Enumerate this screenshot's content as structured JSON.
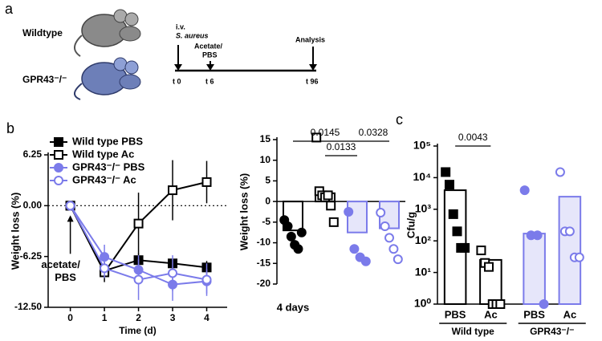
{
  "diagram": {
    "panel": "a",
    "rows": [
      {
        "label": "Wildtype"
      },
      {
        "label": "GPR43⁻/⁻"
      }
    ],
    "events": [
      {
        "label": [
          "i.v.",
          "S. aureus"
        ],
        "time": "t 0"
      },
      {
        "label": [
          "Acetate/",
          "PBS"
        ],
        "time": "t 6"
      },
      {
        "label": [
          "Analysis"
        ],
        "time": "t 96"
      }
    ]
  },
  "chart_data": [
    {
      "type": "line",
      "panel": "b",
      "xlabel": "Time (d)",
      "ylabel": "Weight loss (%)",
      "x": [
        0,
        1,
        2,
        3,
        4
      ],
      "xlim": [
        -0.65,
        4.6
      ],
      "xticks": [
        0,
        1,
        2,
        3,
        4
      ],
      "ylim": [
        -12.5,
        6.25
      ],
      "yticks": [
        {
          "value": -12.5,
          "label": "-12.50"
        },
        {
          "value": -6.25,
          "label": "-6.25"
        },
        {
          "value": 0,
          "label": "0.00"
        },
        6.25
      ],
      "hline": 0,
      "annotation": [
        "acetate/",
        "PBS"
      ],
      "legend": "upper left",
      "series": [
        {
          "name": "Wild type PBS",
          "color": "#000000",
          "marker": "square",
          "filled": true,
          "values": [
            0,
            -8,
            -6.7,
            -7.1,
            -7.6
          ],
          "errors": [
            0,
            0.8,
            0.8,
            0.6,
            0.8
          ]
        },
        {
          "name": "Wild type Ac",
          "color": "#000000",
          "marker": "square",
          "filled": false,
          "values": [
            0,
            -8.2,
            -2.2,
            1.9,
            2.9
          ],
          "errors": [
            0,
            1.2,
            3.8,
            3.7,
            2.6
          ]
        },
        {
          "name": "GPR43⁻/⁻ PBS",
          "color": "#7b7bea",
          "marker": "circle",
          "filled": true,
          "values": [
            0,
            -6.3,
            -7.9,
            -9.7,
            -9.3
          ],
          "errors": [
            0,
            1.5,
            1.8,
            2,
            1.5
          ]
        },
        {
          "name": "GPR43⁻/⁻ Ac",
          "color": "#7b7bea",
          "marker": "circle",
          "filled": false,
          "values": [
            0,
            -7.7,
            -9.1,
            -8.3,
            -9.1
          ],
          "errors": [
            0,
            1.2,
            2.5,
            2.2,
            2
          ]
        }
      ]
    },
    {
      "type": "bar",
      "xlabel": "4 days",
      "ylabel": "Weight loss (%)",
      "ylim": [
        -20,
        15
      ],
      "yticks": [
        -20,
        -15,
        -10,
        -5,
        0,
        5,
        10,
        15
      ],
      "categories": [
        null,
        null,
        null,
        null
      ],
      "values": [
        -7,
        2,
        -7.5,
        -6.5
      ],
      "colors": [
        "#000000",
        "#000000",
        "#7b7bea",
        "#7b7bea"
      ],
      "fills": [
        "#ffffff",
        "#ffffff",
        "#e6e6fa",
        "#e6e6fa"
      ],
      "markers": [
        "circle",
        "square",
        "circle",
        "circle"
      ],
      "filled": [
        true,
        false,
        true,
        false
      ],
      "points": [
        [
          -4.5,
          -6,
          -8.5,
          -10.5,
          -11.5,
          -7.5
        ],
        [
          15.5,
          2.5,
          1.5,
          1,
          1.5,
          -1,
          -5
        ],
        [
          -2.5,
          -11.5,
          -13.5,
          -14.5
        ],
        [
          -2.7,
          -6,
          -8.8,
          -11.5,
          -14
        ]
      ],
      "comparisons": [
        {
          "label": "0.0145",
          "groups": [
            0,
            2
          ]
        },
        {
          "label": "0.0328",
          "groups": [
            2,
            3
          ]
        },
        {
          "label": "0.0133",
          "groups": [
            1,
            2
          ]
        }
      ]
    },
    {
      "type": "bar",
      "panel": "c",
      "ylabel": "Cfu/g",
      "log": true,
      "ylim": [
        1,
        100000
      ],
      "yticks": [
        {
          "value": 1,
          "label": "10⁰"
        },
        {
          "value": 10,
          "label": "10¹"
        },
        {
          "value": 100,
          "label": "10²"
        },
        {
          "value": 1000,
          "label": "10³"
        },
        {
          "value": 10000,
          "label": "10⁴"
        },
        {
          "value": 100000,
          "label": "10⁵"
        }
      ],
      "categories": [
        "PBS",
        "Ac",
        "PBS",
        "Ac"
      ],
      "values": [
        4000,
        25,
        170,
        2500
      ],
      "groups": [
        {
          "label": "Wild type",
          "members": [
            0,
            1
          ]
        },
        {
          "label": "GPR43⁻/⁻",
          "members": [
            2,
            3
          ]
        }
      ],
      "colors": [
        "#000000",
        "#000000",
        "#7b7bea",
        "#7b7bea"
      ],
      "fills": [
        "#ffffff",
        "#ffffff",
        "#e6e6fa",
        "#e6e6fa"
      ],
      "markers": [
        "square",
        "square",
        "circle",
        "circle"
      ],
      "filled": [
        true,
        false,
        true,
        false
      ],
      "points": [
        [
          15000,
          6000,
          700,
          200,
          60,
          60
        ],
        [
          50,
          20,
          15,
          1,
          1,
          1
        ],
        [
          4000,
          150,
          150,
          1
        ],
        [
          15000,
          200,
          200,
          30,
          30
        ]
      ],
      "comparisons": [
        {
          "label": "0.0043",
          "groups": [
            0,
            1
          ]
        }
      ]
    }
  ]
}
